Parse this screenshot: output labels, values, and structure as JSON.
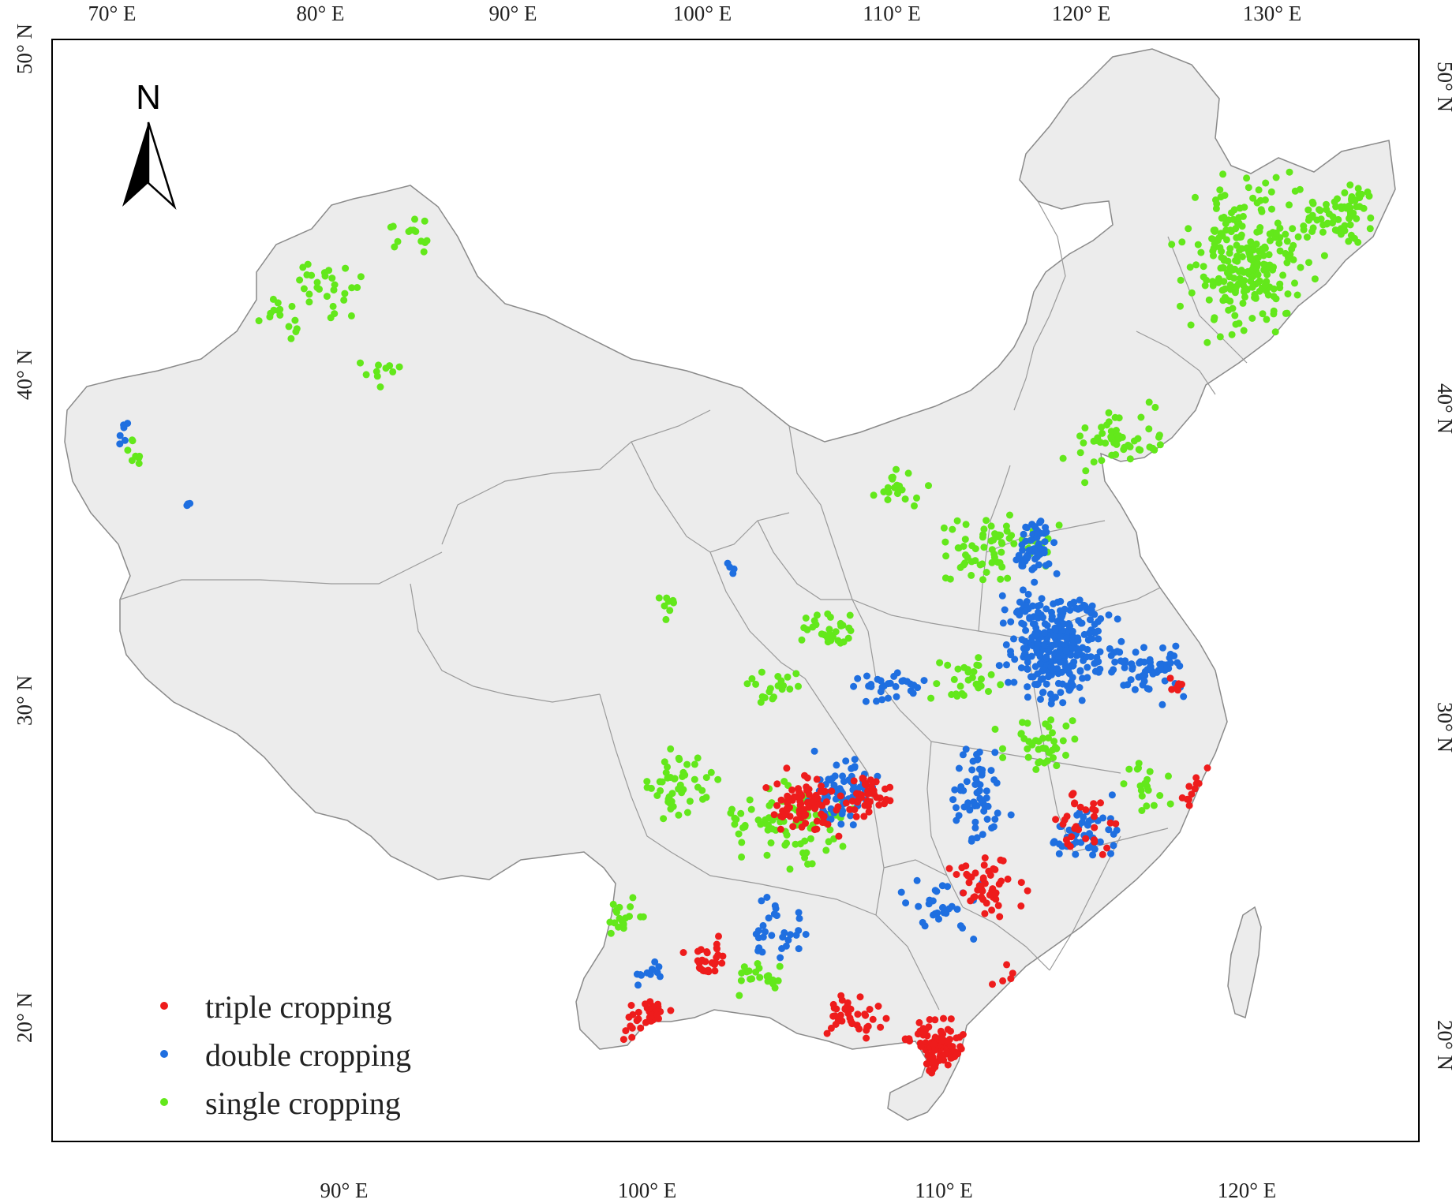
{
  "colors": {
    "triple": "#ee1c1c",
    "double": "#1f6fe0",
    "single": "#63e81b",
    "land": "#ececec",
    "border": "#8a8a8a",
    "frame": "#000000"
  },
  "top_ticks": [
    "70° E",
    "80° E",
    "90° E",
    "100° E",
    "110° E",
    "120° E",
    "130° E"
  ],
  "bottom_ticks": [
    "90° E",
    "100° E",
    "110° E",
    "120° E"
  ],
  "left_ticks": [
    "50° N",
    "40° N",
    "30° N",
    "20° N"
  ],
  "right_ticks": [
    "50° N",
    "40° N",
    "30° N",
    "20° N"
  ],
  "north_arrow": {
    "label": "N",
    "icon": "north-arrow-icon"
  },
  "legend": [
    {
      "key": "triple",
      "label": "triple cropping"
    },
    {
      "key": "double",
      "label": "double cropping"
    },
    {
      "key": "single",
      "label": "single cropping"
    }
  ]
}
